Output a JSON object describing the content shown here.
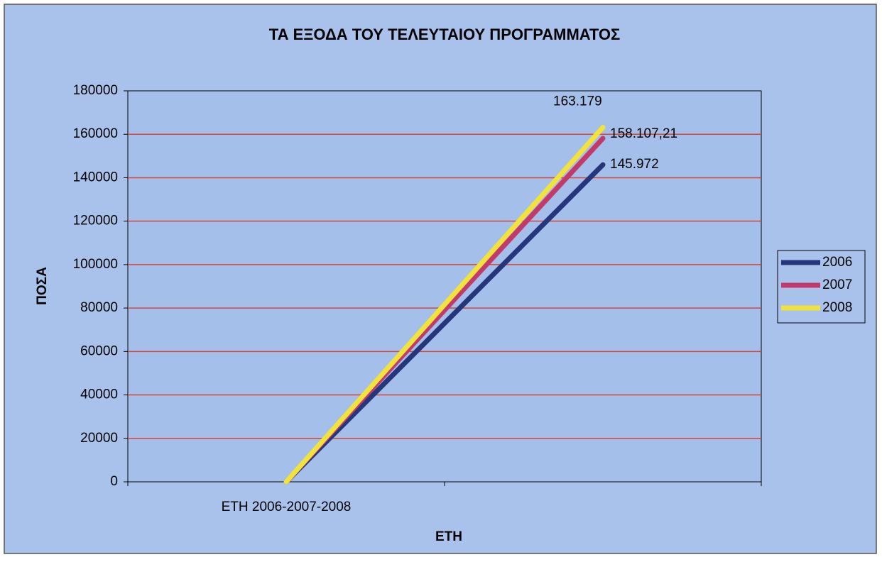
{
  "chart_data": {
    "type": "line",
    "title": "ΤΑ ΕΞΟΔΑ ΤΟΥ ΤΕΛΕΥΤΑΙΟΥ ΠΡΟΓΡΑΜΜΑΤΟΣ",
    "x_label": "ΕΤΗ",
    "y_label": "ΠΟΣΑ",
    "categories": [
      "ΕΤΗ 2006-2007-2008",
      null
    ],
    "series": [
      {
        "name": "2006",
        "color": "#25377a",
        "values": [
          0,
          145972
        ],
        "value_labels": [
          null,
          "145.972"
        ]
      },
      {
        "name": "2007",
        "color": "#c23a6a",
        "values": [
          0,
          158107.21
        ],
        "value_labels": [
          null,
          "158.107,21"
        ]
      },
      {
        "name": "2008",
        "color": "#f2e33c",
        "values": [
          0,
          163179
        ],
        "value_labels": [
          null,
          "163.179"
        ]
      }
    ],
    "ylim": [
      0,
      180000
    ],
    "yticks": [
      0,
      20000,
      40000,
      60000,
      80000,
      100000,
      120000,
      140000,
      160000,
      180000
    ],
    "grid": true,
    "grid_color": "#d5463c",
    "legend": "right"
  }
}
